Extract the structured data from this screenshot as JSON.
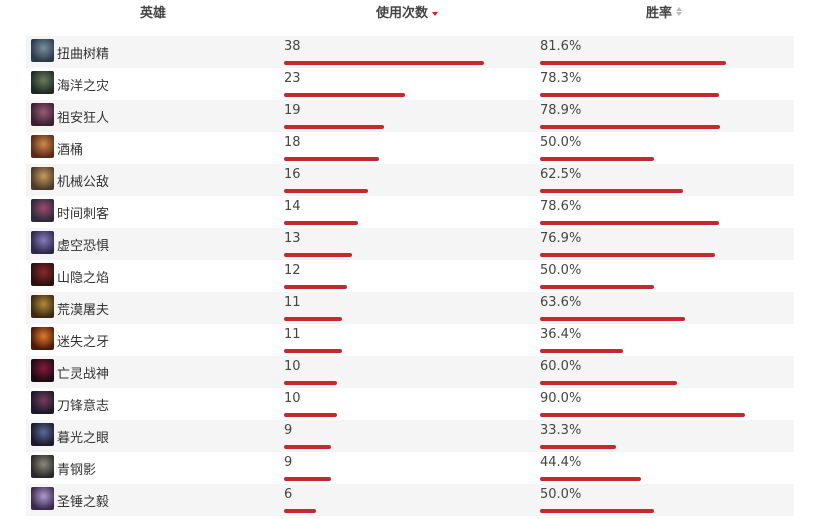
{
  "header": {
    "hero": "英雄",
    "uses": "使用次数",
    "winrate": "胜率"
  },
  "colors": {
    "accent": "#c8282d",
    "row_alt": "#f5f5f5"
  },
  "max_uses": 38,
  "rows": [
    {
      "name": "扭曲树精",
      "uses": "38",
      "winrate": "81.6%",
      "uses_n": 38,
      "win_n": 81.6,
      "c1": "#2b3a4a",
      "c2": "#7a8fa0"
    },
    {
      "name": "海洋之灾",
      "uses": "23",
      "winrate": "78.3%",
      "uses_n": 23,
      "win_n": 78.3,
      "c1": "#1e2b24",
      "c2": "#6a7d5c"
    },
    {
      "name": "祖安狂人",
      "uses": "19",
      "winrate": "78.9%",
      "uses_n": 19,
      "win_n": 78.9,
      "c1": "#3a1f2f",
      "c2": "#9a5a7a"
    },
    {
      "name": "酒桶",
      "uses": "18",
      "winrate": "50.0%",
      "uses_n": 18,
      "win_n": 50.0,
      "c1": "#5a2a1a",
      "c2": "#d08a4a"
    },
    {
      "name": "机械公敌",
      "uses": "16",
      "winrate": "62.5%",
      "uses_n": 16,
      "win_n": 62.5,
      "c1": "#4a3a2a",
      "c2": "#c89a5a"
    },
    {
      "name": "时间刺客",
      "uses": "14",
      "winrate": "78.6%",
      "uses_n": 14,
      "win_n": 78.6,
      "c1": "#2a2a3a",
      "c2": "#a04a6a"
    },
    {
      "name": "虚空恐惧",
      "uses": "13",
      "winrate": "76.9%",
      "uses_n": 13,
      "win_n": 76.9,
      "c1": "#2a2a4a",
      "c2": "#8a7aba"
    },
    {
      "name": "山隐之焰",
      "uses": "12",
      "winrate": "50.0%",
      "uses_n": 12,
      "win_n": 50.0,
      "c1": "#2a1010",
      "c2": "#8a2a2a"
    },
    {
      "name": "荒漠屠夫",
      "uses": "11",
      "winrate": "63.6%",
      "uses_n": 11,
      "win_n": 63.6,
      "c1": "#3a2a10",
      "c2": "#b08a3a"
    },
    {
      "name": "迷失之牙",
      "uses": "11",
      "winrate": "36.4%",
      "uses_n": 11,
      "win_n": 36.4,
      "c1": "#4a1a0a",
      "c2": "#e07a2a"
    },
    {
      "name": "亡灵战神",
      "uses": "10",
      "winrate": "60.0%",
      "uses_n": 10,
      "win_n": 60.0,
      "c1": "#1a0a14",
      "c2": "#8a1a3a"
    },
    {
      "name": "刀锋意志",
      "uses": "10",
      "winrate": "90.0%",
      "uses_n": 10,
      "win_n": 90.0,
      "c1": "#1a1a2a",
      "c2": "#7a3a5a"
    },
    {
      "name": "暮光之眼",
      "uses": "9",
      "winrate": "33.3%",
      "uses_n": 9,
      "win_n": 33.3,
      "c1": "#1a1a2a",
      "c2": "#5a6a9a"
    },
    {
      "name": "青钢影",
      "uses": "9",
      "winrate": "44.4%",
      "uses_n": 9,
      "win_n": 44.4,
      "c1": "#2a2a2a",
      "c2": "#8a8a7a"
    },
    {
      "name": "圣锤之毅",
      "uses": "6",
      "winrate": "50.0%",
      "uses_n": 6,
      "win_n": 50.0,
      "c1": "#3a2a4a",
      "c2": "#b09ad0"
    }
  ]
}
